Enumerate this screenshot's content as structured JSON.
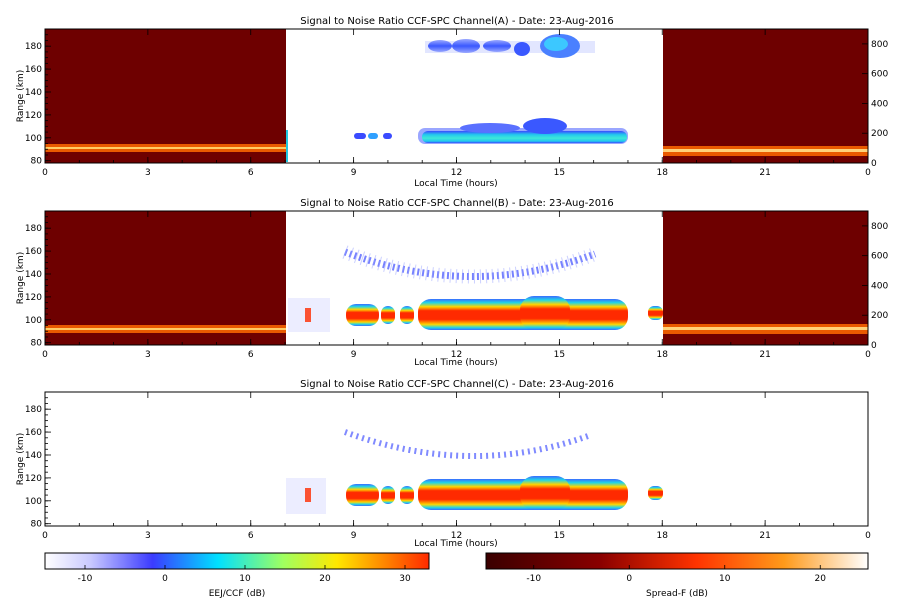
{
  "colors": {
    "background": "#ffffff",
    "night_fill": "#6e0000",
    "spreadf_band": "#ff6a00",
    "ccf_layer_core": "#ff2800",
    "ccf_layer_edge": "#2fd3e0",
    "echo_blue": "#4a58ff"
  },
  "chart_data": [
    {
      "type": "heatmap",
      "title": "Signal to Noise Ratio CCF-SPC Channel(A) - Date: 23-Aug-2016",
      "xlabel": "Local Time (hours)",
      "ylabel": "Range (km)",
      "xlim": [
        0,
        24
      ],
      "ylim": [
        78,
        195
      ],
      "x_ticks": [
        "0",
        "3",
        "6",
        "9",
        "12",
        "15",
        "18",
        "21",
        "0"
      ],
      "y_ticks": [
        "80",
        "100",
        "120",
        "140",
        "160",
        "180"
      ],
      "y2lim": [
        0,
        900
      ],
      "y2_ticks": [
        "0",
        "200",
        "400",
        "600",
        "800"
      ],
      "night_spreadf_panels": [
        [
          0,
          7
        ],
        [
          18,
          24
        ]
      ],
      "ccf_lower_layer": {
        "time_start": 11,
        "time_end": 17,
        "range_km": [
          100,
          112
        ],
        "peak_time": 14.6,
        "peak_range_km": 116
      },
      "ccf_upper_layer": {
        "time_start": 11.2,
        "time_end": 16.2,
        "range_km": [
          175,
          185
        ],
        "peak_time": 15.1
      },
      "isolated_echoes": [
        {
          "time": 9.3,
          "range_km": 104
        },
        {
          "time": 9.9,
          "range_km": 104
        },
        {
          "time": 10.4,
          "range_km": 104
        }
      ],
      "grid": false
    },
    {
      "type": "heatmap",
      "title": "Signal to Noise Ratio CCF-SPC Channel(B) - Date: 23-Aug-2016",
      "xlabel": "Local Time (hours)",
      "ylabel": "Range (km)",
      "xlim": [
        0,
        24
      ],
      "ylim": [
        78,
        195
      ],
      "x_ticks": [
        "0",
        "3",
        "6",
        "9",
        "12",
        "15",
        "18",
        "21",
        "0"
      ],
      "y_ticks": [
        "80",
        "100",
        "120",
        "140",
        "160",
        "180"
      ],
      "y2lim": [
        0,
        900
      ],
      "y2_ticks": [
        "0",
        "200",
        "400",
        "600",
        "800"
      ],
      "night_spreadf_panels": [
        [
          0,
          7
        ],
        [
          18,
          24
        ]
      ],
      "ccf_layer": {
        "time_start": 9,
        "time_end": 17.5,
        "range_km": [
          95,
          115
        ],
        "segments": [
          [
            9,
            9.7
          ],
          [
            9.8,
            10.5
          ],
          [
            10.7,
            17.2
          ],
          [
            17.6,
            18
          ]
        ]
      },
      "upper_echo_arc": {
        "time_start": 9.5,
        "time_end": 16,
        "range_km_at_start": 163,
        "range_km_min": 143,
        "time_of_min": 12.5,
        "range_km_at_end": 158
      },
      "grid": false
    },
    {
      "type": "heatmap",
      "title": "Signal to Noise Ratio CCF-SPC Channel(C) - Date: 23-Aug-2016",
      "xlabel": "Local Time (hours)",
      "ylabel": "Range (km)",
      "xlim": [
        0,
        24
      ],
      "ylim": [
        78,
        195
      ],
      "x_ticks": [
        "0",
        "3",
        "6",
        "9",
        "12",
        "15",
        "18",
        "21",
        "0"
      ],
      "y_ticks": [
        "80",
        "100",
        "120",
        "140",
        "160",
        "180"
      ],
      "ccf_layer": {
        "time_start": 9,
        "time_end": 17.5,
        "range_km": [
          95,
          115
        ],
        "segments": [
          [
            9,
            9.7
          ],
          [
            9.8,
            10.5
          ],
          [
            10.7,
            17.2
          ],
          [
            17.6,
            18
          ]
        ]
      },
      "upper_echo_arc": {
        "time_start": 9.5,
        "time_end": 16,
        "range_km_at_start": 160,
        "range_km_min": 143,
        "time_of_min": 12.5,
        "range_km_at_end": 152
      },
      "grid": false
    }
  ],
  "colorbars": [
    {
      "label": "EEJ/CCF (dB)",
      "range": [
        -15,
        33
      ],
      "ticks": [
        "-10",
        "0",
        "10",
        "20",
        "30"
      ],
      "tick_values": [
        -10,
        0,
        10,
        20,
        30
      ],
      "colormap": [
        "#ffffff",
        "#3b3bff",
        "#00e0ff",
        "#ffe800",
        "#ff2a00"
      ]
    },
    {
      "label": "Spread-F (dB)",
      "range": [
        -15,
        25
      ],
      "ticks": [
        "-10",
        "0",
        "10",
        "20"
      ],
      "tick_values": [
        -10,
        0,
        10,
        20
      ],
      "colormap": [
        "#3a0000",
        "#aa0000",
        "#ff4400",
        "#ff9a1a",
        "#ffffff"
      ]
    }
  ]
}
